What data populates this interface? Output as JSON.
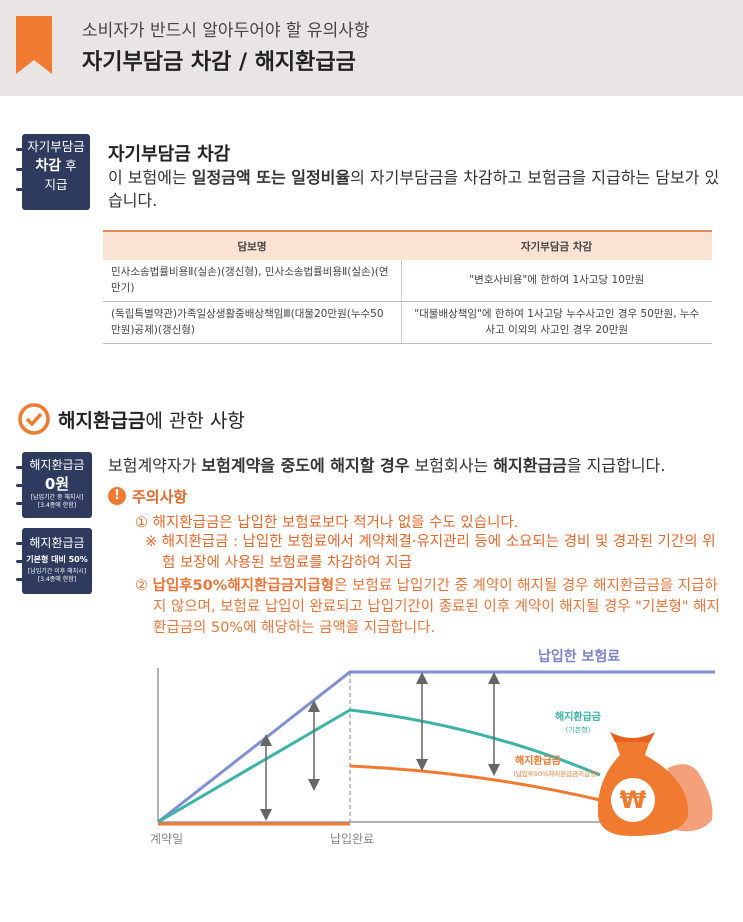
{
  "header": {
    "subtitle": "소비자가 반드시 알아두어야 할 유의사항",
    "title": "자기부담금 차감 / 해지환급금"
  },
  "deductible": {
    "badge": {
      "line1": "자기부담금",
      "strong": "차감",
      "after": "후",
      "line3": "지급"
    },
    "heading": "자기부담금 차감",
    "description": {
      "before": "이 보험에는 ",
      "bold": "일정금액 또는 일정비율",
      "after": "의 자기부담금을 차감하고 보험금을 지급하는 담보가 있습니다."
    },
    "table": {
      "headers": [
        "담보명",
        "자기부담금 차감"
      ],
      "rows": [
        [
          "민사소송법률비용Ⅱ(실손)(갱신형), 민사소송법률비용Ⅱ(실손)(연만기)",
          "\"변호사비용\"에 한하여 1사고당 10만원"
        ],
        [
          "(독립특별약관)가족일상생활중배상책임Ⅲ(대물20만원(누수50만원)공제)(갱신형)",
          "\"대물배상책임\"에 한하여 1사고당 누수사고인 경우 50만원, 누수사고 이외의 사고인 경우 20만원"
        ]
      ]
    }
  },
  "refund": {
    "heading": {
      "bold": "해지환급금",
      "rest": "에 관한 사항"
    },
    "badges": [
      {
        "title": "해지환급금",
        "value": "0원",
        "note1": "[납입기간 중 해지시]",
        "note2": "[3.4종에 한함]"
      },
      {
        "title": "해지환급금",
        "value": "기본형 대비 50%",
        "note1": "[납입기간 이후 해지시]",
        "note2": "[3.4종에 한함]"
      }
    ],
    "statement": {
      "part1": "보험계약자가 ",
      "bold1": "보험계약을 중도에 해지할 경우",
      "part2": " 보험회사는 ",
      "bold2": "해지환급금",
      "part3": "을 지급합니다."
    },
    "notice": {
      "icon": "!",
      "title": "주의사항",
      "item1": "① 해지환급금은 납입한 보험료보다 적거나 없을 수도 있습니다.",
      "item2": "※ 해지환급금 : 납입한 보험료에서 계약체결·유지관리 등에 소요되는 경비 및 경과된 기간의 위험 보장에 사용된 보험료를 차감하여 지급",
      "item3": {
        "mark": "② ",
        "bold": "납입후50%해지환급금지급형",
        "rest": "은 보험료 납입기간 중 계약이 해지될 경우 해지환급금을 지급하지 않으며, 보험료 납입이 완료되고 납입기간이 종료된 이후 계약이 해지될 경우 \"기본형\" 해지환급금의 50%에 해당하는 금액을 지급합니다."
      }
    },
    "diagram": {
      "premium_label": "납입한 보험료",
      "basic_label": "해지환급금",
      "basic_sub": "(기본형)",
      "half_label": "해지환급금",
      "half_sub": "(납입후50%해지환급금지급형)",
      "start_label": "계약일",
      "end_label": "납입완료",
      "currency": "₩"
    }
  }
}
